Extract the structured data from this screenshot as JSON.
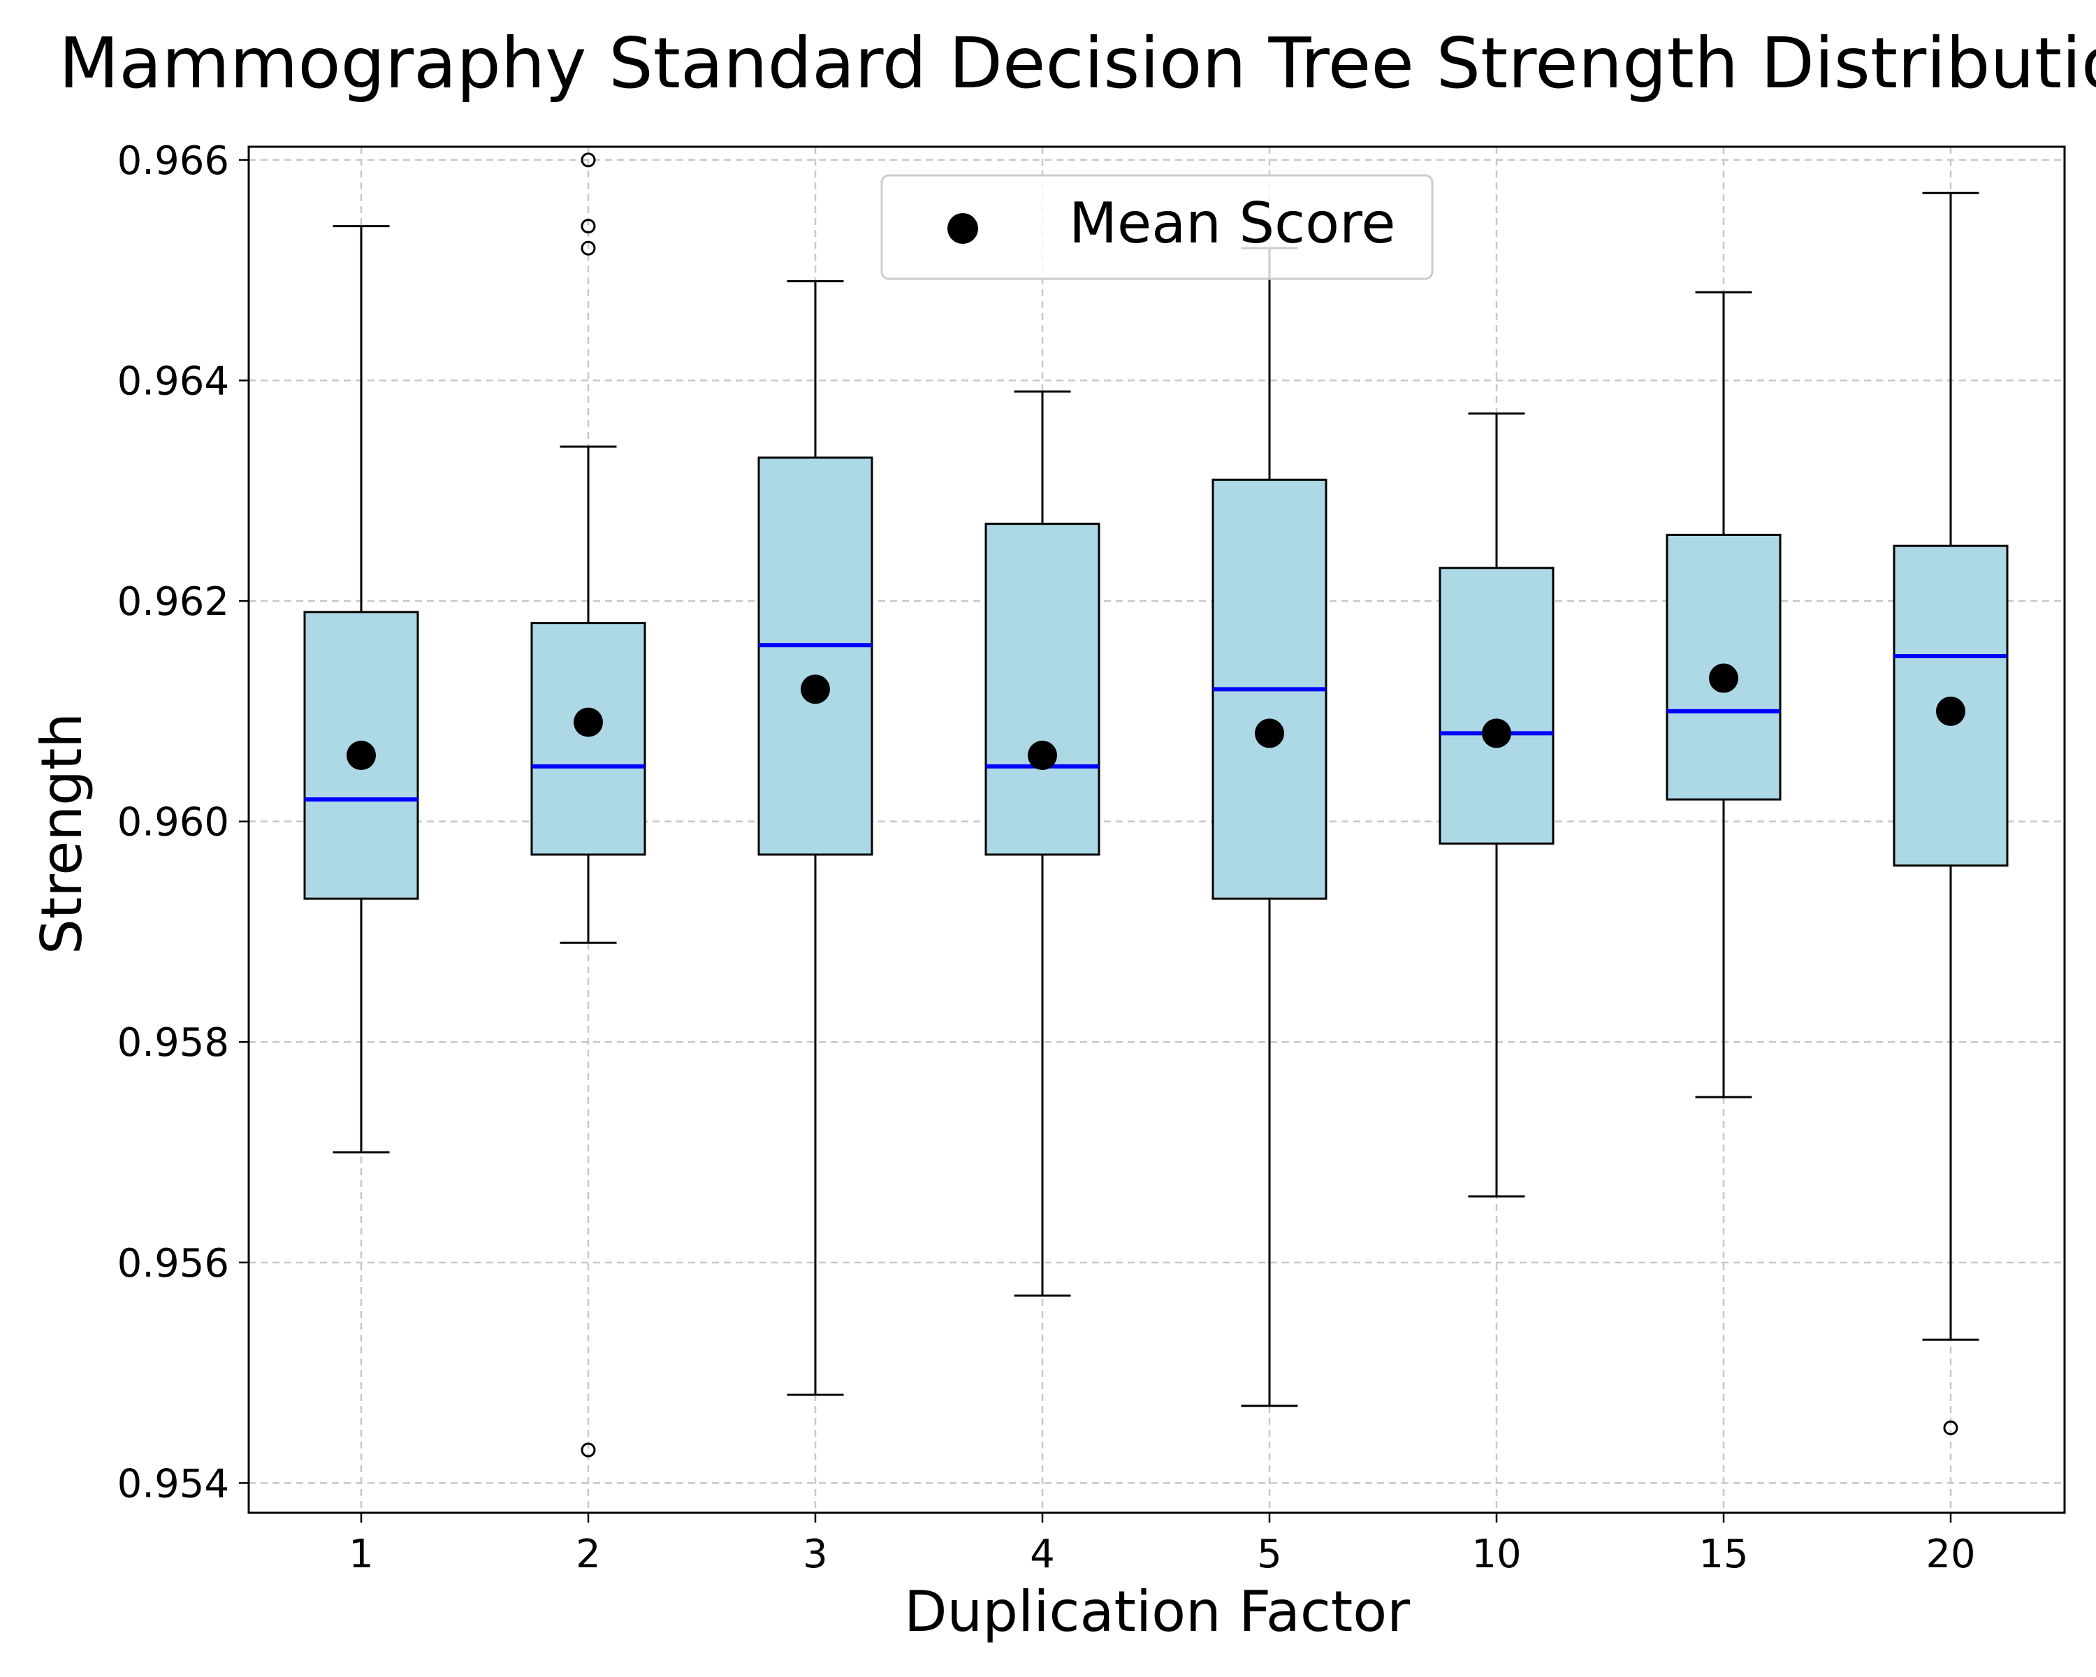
{
  "chart_data": {
    "type": "box",
    "title": "Mammography Standard Decision Tree Strength Distribution",
    "xlabel": "Duplication Factor",
    "ylabel": "Strength",
    "categories": [
      "1",
      "2",
      "3",
      "4",
      "5",
      "10",
      "15",
      "20"
    ],
    "ylim": [
      0.95373,
      0.96612
    ],
    "yticks": [
      0.954,
      0.956,
      0.958,
      0.96,
      0.962,
      0.964,
      0.966
    ],
    "ytick_labels": [
      "0.954",
      "0.956",
      "0.958",
      "0.960",
      "0.962",
      "0.964",
      "0.966"
    ],
    "grid": true,
    "legend": {
      "label": "Mean Score",
      "placement": "top-center"
    },
    "colors": {
      "box_fill": "#add8e6",
      "median": "#0000ff",
      "mean": "#000000",
      "grid": "#c8c8c8"
    },
    "boxes": [
      {
        "category": "1",
        "whisker_low": 0.957,
        "q1": 0.9593,
        "median": 0.9602,
        "q3": 0.9619,
        "whisker_high": 0.9654,
        "mean": 0.9606,
        "outliers": []
      },
      {
        "category": "2",
        "whisker_low": 0.9589,
        "q1": 0.9597,
        "median": 0.9605,
        "q3": 0.9618,
        "whisker_high": 0.9634,
        "mean": 0.9609,
        "outliers": [
          0.966,
          0.9654,
          0.9652,
          0.9543
        ]
      },
      {
        "category": "3",
        "whisker_low": 0.9548,
        "q1": 0.9597,
        "median": 0.9616,
        "q3": 0.9633,
        "whisker_high": 0.9649,
        "mean": 0.9612,
        "outliers": []
      },
      {
        "category": "4",
        "whisker_low": 0.9557,
        "q1": 0.9597,
        "median": 0.9605,
        "q3": 0.9627,
        "whisker_high": 0.9639,
        "mean": 0.9606,
        "outliers": []
      },
      {
        "category": "5",
        "whisker_low": 0.9547,
        "q1": 0.9593,
        "median": 0.9612,
        "q3": 0.9631,
        "whisker_high": 0.9652,
        "mean": 0.9608,
        "outliers": []
      },
      {
        "category": "10",
        "whisker_low": 0.9566,
        "q1": 0.9598,
        "median": 0.9608,
        "q3": 0.9623,
        "whisker_high": 0.9637,
        "mean": 0.9608,
        "outliers": []
      },
      {
        "category": "15",
        "whisker_low": 0.9575,
        "q1": 0.9602,
        "median": 0.961,
        "q3": 0.9626,
        "whisker_high": 0.9648,
        "mean": 0.9613,
        "outliers": []
      },
      {
        "category": "20",
        "whisker_low": 0.9553,
        "q1": 0.9596,
        "median": 0.9615,
        "q3": 0.9625,
        "whisker_high": 0.9657,
        "mean": 0.961,
        "outliers": [
          0.9545
        ]
      }
    ]
  }
}
